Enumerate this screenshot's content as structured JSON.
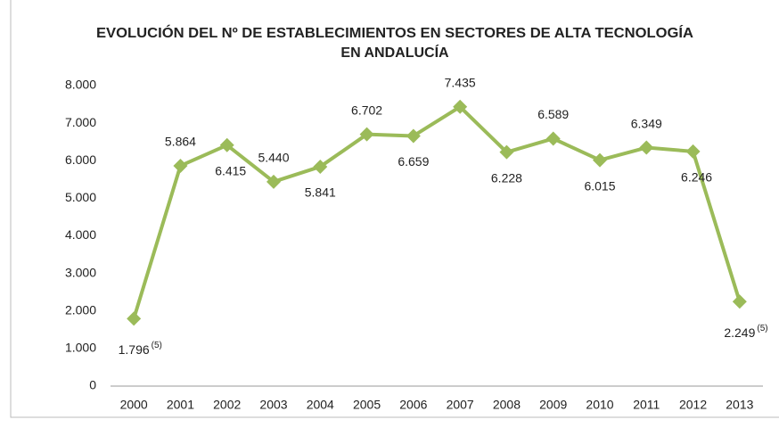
{
  "chart_data": {
    "type": "line",
    "title": [
      "EVOLUCIÓN DEL Nº DE ESTABLECIMIENTOS EN SECTORES DE ALTA TECNOLOGÍA",
      "EN ANDALUCÍA"
    ],
    "categories": [
      "2000",
      "2001",
      "2002",
      "2003",
      "2004",
      "2005",
      "2006",
      "2007",
      "2008",
      "2009",
      "2010",
      "2011",
      "2012",
      "2013"
    ],
    "series": [
      {
        "color": "#9bbb59",
        "values": [
          1796,
          5864,
          6415,
          5440,
          5841,
          6702,
          6659,
          7435,
          6228,
          6589,
          6015,
          6349,
          6246,
          2249
        ],
        "value_labels": [
          "1.796",
          "5.864",
          "6.415",
          "5.440",
          "5.841",
          "6.702",
          "6.659",
          "7.435",
          "6.228",
          "6.589",
          "6.015",
          "6.349",
          "6.246",
          "2.249"
        ]
      }
    ],
    "annotations": [
      {
        "index": 0,
        "text": "(5)"
      },
      {
        "index": 13,
        "text": "(5)"
      }
    ],
    "ylim": [
      0,
      8000
    ],
    "yticks": [
      0,
      {
        "value": 1000,
        "label": "1.000"
      },
      {
        "value": 2000,
        "label": "2.000"
      },
      {
        "value": 3000,
        "label": "3.000"
      },
      {
        "value": 4000,
        "label": "4.000"
      },
      {
        "value": 5000,
        "label": "5.000"
      },
      {
        "value": 6000,
        "label": "6.000"
      },
      {
        "value": 7000,
        "label": "7.000"
      },
      {
        "value": 8000,
        "label": "8.000"
      }
    ],
    "grid": false
  }
}
